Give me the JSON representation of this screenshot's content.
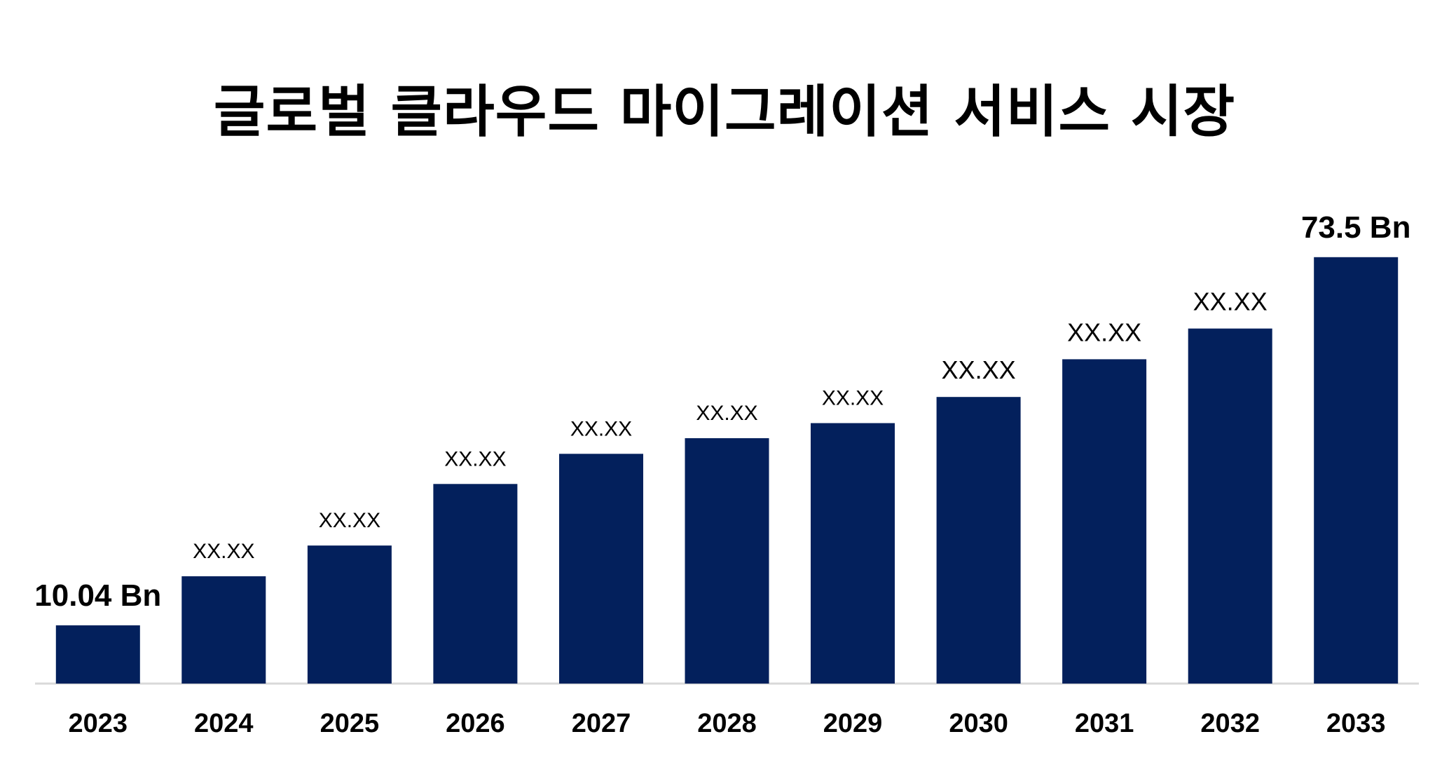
{
  "chart_data": {
    "type": "bar",
    "title": "글로벌 클라우드 마이그레이션 서비스 시장",
    "xlabel": "",
    "ylabel": "",
    "categories": [
      "2023",
      "2024",
      "2025",
      "2026",
      "2027",
      "2028",
      "2029",
      "2030",
      "2031",
      "2032",
      "2033"
    ],
    "values": [
      10.04,
      18.5,
      23.8,
      34.4,
      39.6,
      42.3,
      44.9,
      49.4,
      55.9,
      61.2,
      73.5
    ],
    "value_labels": [
      "10.04 Bn",
      "XX.XX",
      "XX.XX",
      "XX.XX",
      "XX.XX",
      "XX.XX",
      "XX.XX",
      "XX.XX",
      "XX.XX",
      "XX.XX",
      "73.5 Bn"
    ],
    "ylim": [
      0,
      80
    ],
    "grid": false,
    "legend": "none",
    "bar_color": "#03205C",
    "baseline_color": "#D9D9D9"
  }
}
